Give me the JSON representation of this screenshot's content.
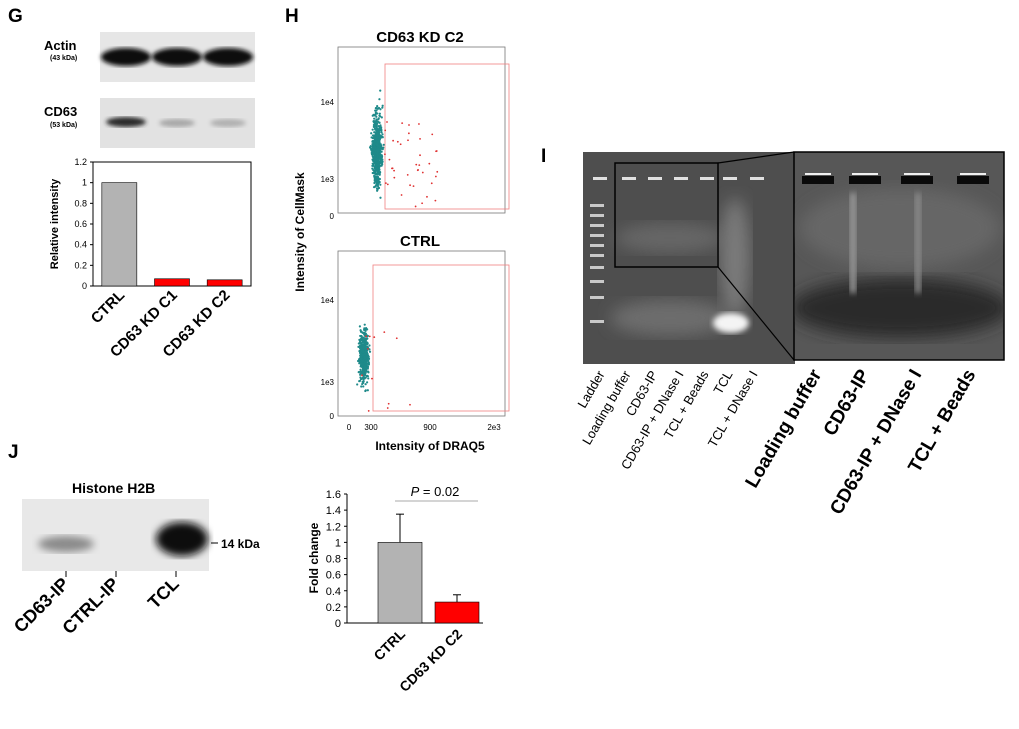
{
  "panels": {
    "G": {
      "letter": "G",
      "blots": [
        {
          "name": "Actin",
          "kda": "(43 kDa)"
        },
        {
          "name": "CD63",
          "kda": "(53 kDa)"
        }
      ]
    },
    "H": {
      "letter": "H",
      "plots": [
        {
          "title": "CD63 KD C2",
          "yticks": [
            "1e4",
            "1e3",
            "0"
          ]
        },
        {
          "title": "CTRL",
          "yticks": [
            "1e4",
            "1e3",
            "0"
          ]
        }
      ],
      "xticks": [
        "0",
        "300",
        "900",
        "2e3"
      ],
      "xlabel": "Intensity of DRAQ5",
      "ylabel": "Intensity of CellMask"
    },
    "I": {
      "letter": "I",
      "lanes": [
        "Ladder",
        "Loading buffer",
        "CD63-IP",
        "CD63-IP + DNase I",
        "TCL + Beads",
        "TCL",
        "TCL + DNase I"
      ],
      "zoom_lanes": [
        "Loading buffer",
        "CD63-IP",
        "CD63-IP + DNase I",
        "TCL + Beads"
      ]
    },
    "J": {
      "letter": "J",
      "blot_title": "Histone H2B",
      "marker": "14 kDa",
      "lanes": [
        "CD63-IP",
        "CTRL-IP",
        "TCL"
      ]
    }
  },
  "chart_data": [
    {
      "type": "bar",
      "panel": "G",
      "categories": [
        "CTRL",
        "CD63 KD C1",
        "CD63 KD C2"
      ],
      "values": [
        1.0,
        0.07,
        0.06
      ],
      "colors": [
        "#b3b3b3",
        "#ff0000",
        "#ff0000"
      ],
      "ylabel": "Relative intensity",
      "ylim": [
        0,
        1.2
      ],
      "yticks": [
        "0",
        "0.2",
        "0.4",
        "0.6",
        "0.8",
        "1",
        "1.2"
      ]
    },
    {
      "type": "bar",
      "panel": "H",
      "categories": [
        "CTRL",
        "CD63 KD C2"
      ],
      "values": [
        1.0,
        0.26
      ],
      "errors": [
        0.35,
        0.09
      ],
      "colors": [
        "#b3b3b3",
        "#ff0000"
      ],
      "ylabel": "Fold change",
      "ylim": [
        0,
        1.6
      ],
      "yticks": [
        "0",
        "0.2",
        "0.4",
        "0.6",
        "0.8",
        "1",
        "1.2",
        "1.4",
        "1.6"
      ],
      "annotation": {
        "p_label": "P",
        "p_value": " = 0.02"
      }
    }
  ]
}
